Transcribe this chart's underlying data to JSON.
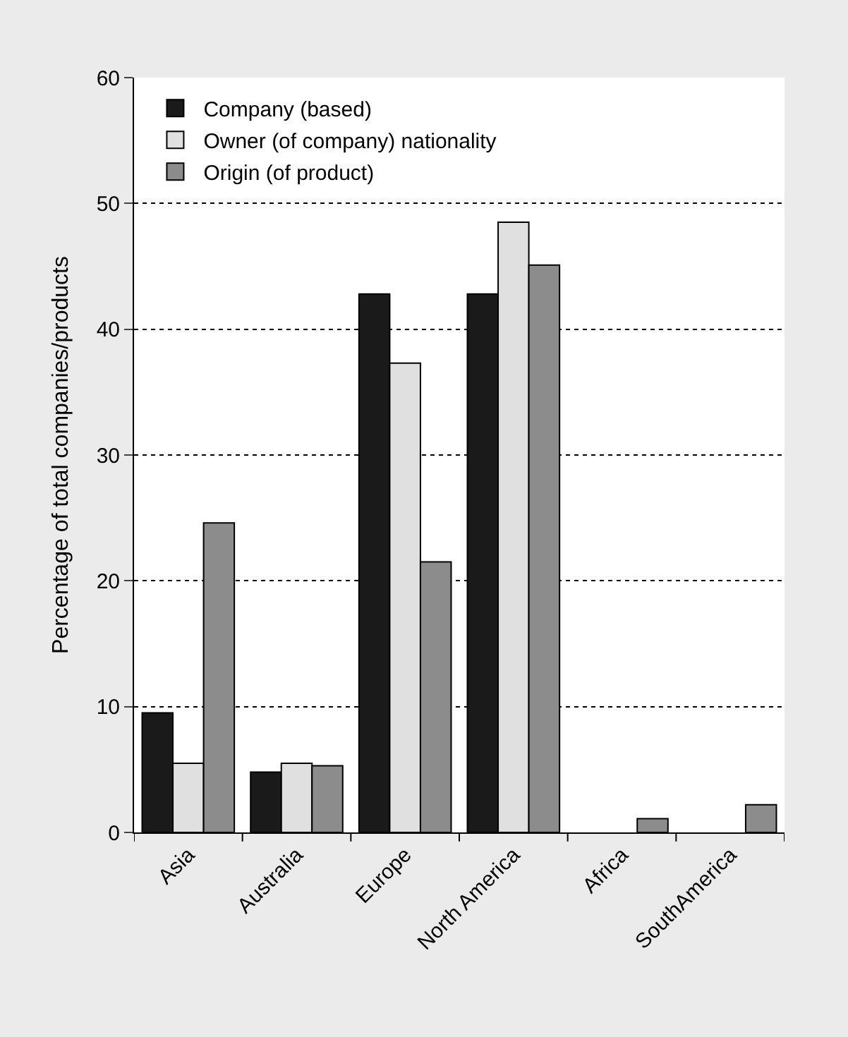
{
  "chart_data": {
    "type": "bar",
    "ylabel": "Percentage of total companies/products",
    "categories": [
      "Asia",
      "Australia",
      "Europe",
      "North America",
      "Africa",
      "SouthAmerica"
    ],
    "series": [
      {
        "name": "Company (based)",
        "color": "#1a1a1a",
        "values": [
          9.5,
          4.8,
          42.8,
          42.8,
          0,
          0
        ]
      },
      {
        "name": "Owner (of company) nationality",
        "color": "#e0e0e0",
        "values": [
          5.5,
          5.5,
          37.3,
          48.5,
          0,
          0
        ]
      },
      {
        "name": "Origin (of product)",
        "color": "#8c8c8c",
        "values": [
          24.6,
          5.3,
          21.5,
          45.1,
          1.1,
          2.2
        ]
      }
    ],
    "ylim": [
      0,
      60
    ],
    "yticks": [
      0,
      10,
      20,
      30,
      40,
      50,
      60
    ],
    "grid": "y",
    "line_style": "dotted",
    "legend": "top left"
  }
}
